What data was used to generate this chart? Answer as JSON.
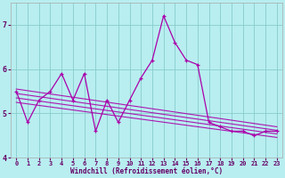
{
  "xlabel": "Windchill (Refroidissement éolien,°C)",
  "bg_color": "#b8eef0",
  "line_color": "#aa00aa",
  "grid_color": "#88cccc",
  "hours": [
    0,
    1,
    2,
    3,
    4,
    5,
    6,
    7,
    8,
    9,
    10,
    11,
    12,
    13,
    14,
    15,
    16,
    17,
    18,
    19,
    20,
    21,
    22,
    23
  ],
  "values": [
    5.5,
    4.8,
    5.3,
    5.5,
    5.9,
    5.3,
    5.9,
    4.6,
    5.3,
    4.8,
    5.3,
    5.8,
    6.2,
    7.2,
    6.6,
    6.2,
    6.1,
    4.8,
    4.7,
    4.6,
    4.6,
    4.5,
    4.6,
    4.6
  ],
  "trend_lines": [
    [
      5.55,
      4.7
    ],
    [
      5.45,
      4.62
    ],
    [
      5.35,
      4.54
    ],
    [
      5.25,
      4.46
    ]
  ],
  "ylim": [
    4.0,
    7.5
  ],
  "yticks": [
    4,
    5,
    6,
    7
  ],
  "xticks": [
    0,
    1,
    2,
    3,
    4,
    5,
    6,
    7,
    8,
    9,
    10,
    11,
    12,
    13,
    14,
    15,
    16,
    17,
    18,
    19,
    20,
    21,
    22,
    23
  ]
}
